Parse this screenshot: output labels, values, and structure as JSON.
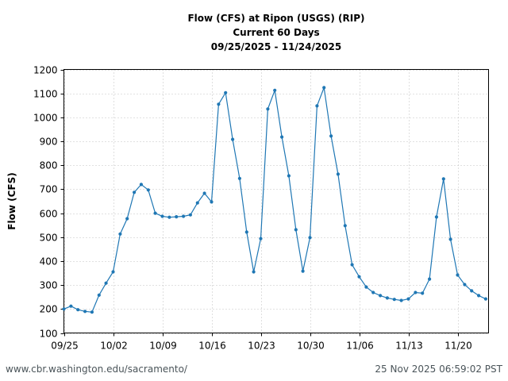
{
  "header": {
    "title_line1": "Flow (CFS) at Ripon (USGS) (RIP)",
    "title_line2": "Current 60 Days",
    "title_line3": "09/25/2025 - 11/24/2025"
  },
  "footer": {
    "source_url": "www.cbr.washington.edu/sacramento/",
    "generated": "25 Nov 2025 06:59:02 PST"
  },
  "colors": {
    "line": "#1f77b4",
    "grid": "#b0b0b0",
    "axis": "#000000"
  },
  "chart_data": {
    "type": "line",
    "title": "Flow (CFS) at Ripon (USGS) (RIP)",
    "subtitle": "Current 60 Days — 09/25/2025 - 11/24/2025",
    "xlabel": "",
    "ylabel": "Flow (CFS)",
    "ylim": [
      100,
      1200
    ],
    "yticks": [
      100,
      200,
      300,
      400,
      500,
      600,
      700,
      800,
      900,
      1000,
      1100,
      1200
    ],
    "xticks": [
      "09/25",
      "10/02",
      "10/09",
      "10/16",
      "10/23",
      "10/30",
      "11/06",
      "11/13",
      "11/20"
    ],
    "grid": true,
    "legend": null,
    "x": [
      "09/25",
      "09/26",
      "09/27",
      "09/28",
      "09/29",
      "09/30",
      "10/01",
      "10/02",
      "10/03",
      "10/04",
      "10/05",
      "10/06",
      "10/07",
      "10/08",
      "10/09",
      "10/10",
      "10/11",
      "10/12",
      "10/13",
      "10/14",
      "10/15",
      "10/16",
      "10/17",
      "10/18",
      "10/19",
      "10/20",
      "10/21",
      "10/22",
      "10/23",
      "10/24",
      "10/25",
      "10/26",
      "10/27",
      "10/28",
      "10/29",
      "10/30",
      "10/31",
      "11/01",
      "11/02",
      "11/03",
      "11/04",
      "11/05",
      "11/06",
      "11/07",
      "11/08",
      "11/09",
      "11/10",
      "11/11",
      "11/12",
      "11/13",
      "11/14",
      "11/15",
      "11/16",
      "11/17",
      "11/18",
      "11/19",
      "11/20",
      "11/21",
      "11/22",
      "11/23",
      "11/24"
    ],
    "series": [
      {
        "name": "Flow (CFS)",
        "values": [
          200,
          212,
          197,
          190,
          187,
          258,
          308,
          355,
          513,
          577,
          687,
          720,
          697,
          600,
          587,
          583,
          585,
          587,
          593,
          643,
          683,
          647,
          1055,
          1103,
          908,
          745,
          521,
          355,
          494,
          1035,
          1113,
          918,
          756,
          531,
          358,
          498,
          1048,
          1124,
          922,
          763,
          548,
          385,
          335,
          292,
          269,
          256,
          246,
          240,
          236,
          242,
          269,
          266,
          325,
          584,
          743,
          491,
          342,
          302,
          276,
          256,
          242
        ]
      }
    ]
  }
}
